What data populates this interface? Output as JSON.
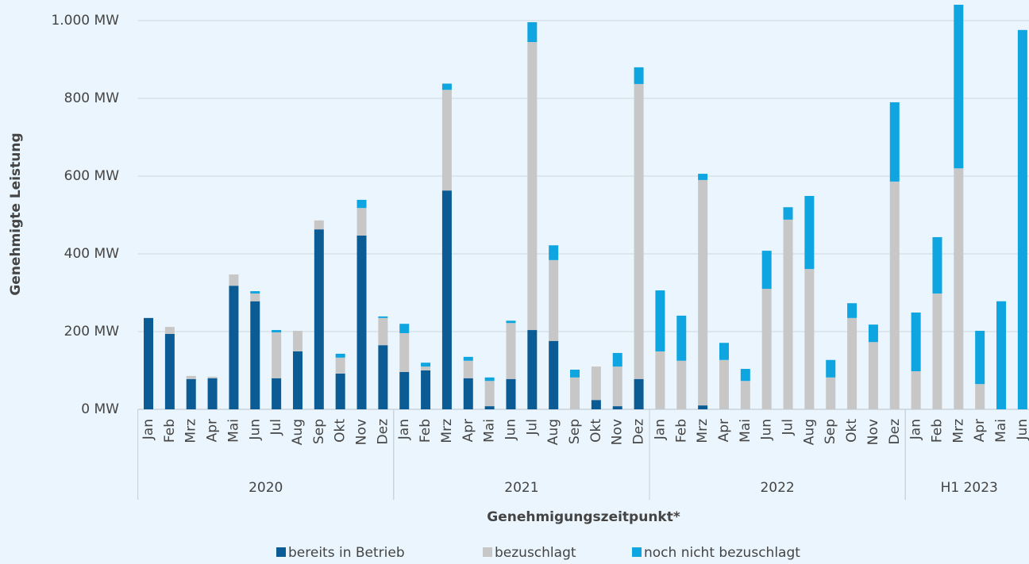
{
  "chart_data": {
    "type": "stacked-bar",
    "y_label": "Genehmigte Leistung",
    "x_label": "Genehmigungszeitpunkt*",
    "groups": [
      {
        "name": "2020",
        "categories": [
          "Jan",
          "Feb",
          "Mrz",
          "Apr",
          "Mai",
          "Jun",
          "Jul",
          "Aug",
          "Sep",
          "Okt",
          "Nov",
          "Dez"
        ]
      },
      {
        "name": "2021",
        "categories": [
          "Jan",
          "Feb",
          "Mrz",
          "Apr",
          "Mai",
          "Jun",
          "Jul",
          "Aug",
          "Sep",
          "Okt",
          "Nov",
          "Dez"
        ]
      },
      {
        "name": "2022",
        "categories": [
          "Jan",
          "Feb",
          "Mrz",
          "Apr",
          "Mai",
          "Jun",
          "Jul",
          "Aug",
          "Sep",
          "Okt",
          "Nov",
          "Dez"
        ]
      },
      {
        "name": "H1 2023",
        "categories": [
          "Jan",
          "Feb",
          "Mrz",
          "Apr",
          "Mai",
          "Jun"
        ]
      }
    ],
    "series": [
      {
        "name": "bereits in Betrieb",
        "color": "#0b5c94",
        "values": [
          235,
          194,
          78,
          80,
          318,
          278,
          80,
          149,
          463,
          92,
          447,
          165,
          96,
          100,
          563,
          80,
          8,
          78,
          204,
          176,
          0,
          24,
          8,
          78,
          0,
          0,
          10,
          0,
          0,
          0,
          0,
          0,
          0,
          0,
          0,
          0,
          0,
          0,
          0,
          0,
          0,
          0
        ]
      },
      {
        "name": "bezuschlagt",
        "color": "#c7c7c7",
        "values": [
          0,
          18,
          8,
          4,
          29,
          20,
          118,
          53,
          23,
          41,
          71,
          70,
          100,
          10,
          259,
          45,
          65,
          144,
          741,
          208,
          82,
          86,
          102,
          759,
          149,
          125,
          580,
          127,
          73,
          310,
          488,
          361,
          82,
          235,
          173,
          586,
          98,
          298,
          620,
          65,
          0,
          0
        ]
      },
      {
        "name": "noch nicht bezuschlagt",
        "color": "#0ea5e0",
        "values": [
          0,
          0,
          0,
          0,
          0,
          6,
          6,
          0,
          0,
          10,
          21,
          4,
          24,
          10,
          16,
          10,
          9,
          6,
          51,
          38,
          20,
          0,
          35,
          43,
          157,
          116,
          16,
          44,
          31,
          98,
          32,
          188,
          45,
          38,
          45,
          204,
          151,
          145,
          421,
          137,
          278,
          976
        ]
      }
    ],
    "ylim": [
      0,
      1045
    ],
    "yticks": [
      {
        "value": 0,
        "label": "0 MW"
      },
      {
        "value": 200,
        "label": "200 MW"
      },
      {
        "value": 400,
        "label": "400 MW"
      },
      {
        "value": 600,
        "label": "600 MW"
      },
      {
        "value": 800,
        "label": "800 MW"
      },
      {
        "value": 1000,
        "label": "1.000 MW"
      }
    ],
    "grid": true
  }
}
